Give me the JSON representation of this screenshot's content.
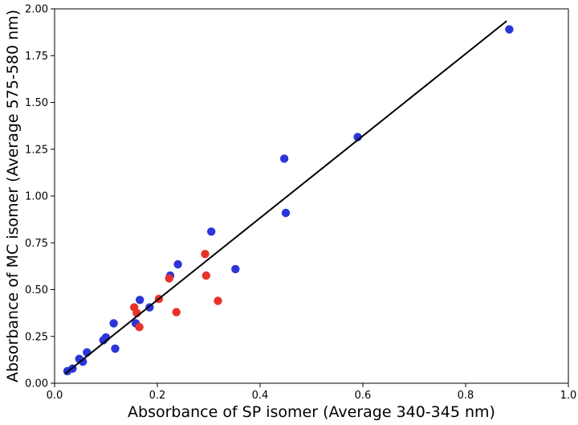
{
  "chart_data": {
    "type": "scatter",
    "title": "",
    "xlabel": "Absorbance of SP isomer (Average 340-345 nm)",
    "ylabel": "Absorbance of MC isomer (Average 575-580 nm)",
    "xlim": [
      0.0,
      1.0
    ],
    "ylim": [
      0.0,
      2.0
    ],
    "xticks": [
      "0.0",
      "0.2",
      "0.4",
      "0.6",
      "0.8",
      "1.0"
    ],
    "yticks": [
      "0.00",
      "0.25",
      "0.50",
      "0.75",
      "1.00",
      "1.25",
      "1.50",
      "1.75",
      "2.00"
    ],
    "grid": false,
    "legend": "none",
    "series": [
      {
        "color": "#2b35d9",
        "points": [
          [
            0.025,
            0.065
          ],
          [
            0.035,
            0.078
          ],
          [
            0.048,
            0.13
          ],
          [
            0.055,
            0.115
          ],
          [
            0.063,
            0.165
          ],
          [
            0.095,
            0.23
          ],
          [
            0.1,
            0.245
          ],
          [
            0.115,
            0.32
          ],
          [
            0.118,
            0.185
          ],
          [
            0.158,
            0.32
          ],
          [
            0.166,
            0.445
          ],
          [
            0.185,
            0.405
          ],
          [
            0.225,
            0.575
          ],
          [
            0.24,
            0.635
          ],
          [
            0.305,
            0.81
          ],
          [
            0.352,
            0.61
          ],
          [
            0.447,
            1.2
          ],
          [
            0.45,
            0.91
          ],
          [
            0.59,
            1.315
          ],
          [
            0.885,
            1.89
          ]
        ]
      },
      {
        "color": "#e8322a",
        "points": [
          [
            0.155,
            0.405
          ],
          [
            0.16,
            0.375
          ],
          [
            0.165,
            0.3
          ],
          [
            0.203,
            0.45
          ],
          [
            0.223,
            0.56
          ],
          [
            0.237,
            0.38
          ],
          [
            0.293,
            0.69
          ],
          [
            0.295,
            0.575
          ],
          [
            0.318,
            0.44
          ]
        ]
      }
    ],
    "fit_line": {
      "color": "#000000",
      "x": [
        0.02,
        0.88
      ],
      "y": [
        0.05,
        1.935
      ]
    }
  }
}
